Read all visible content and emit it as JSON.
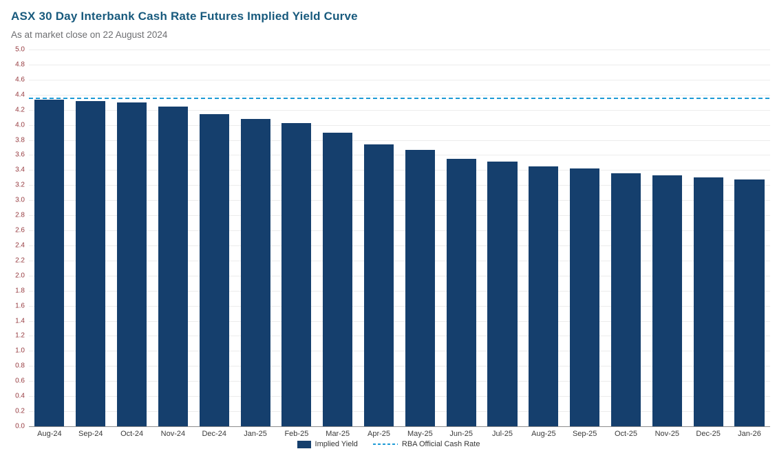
{
  "header": {
    "title": "ASX 30 Day Interbank Cash Rate Futures Implied Yield Curve",
    "subtitle": "As at market close on 22 August 2024"
  },
  "legend": {
    "implied_yield_label": "Implied Yield",
    "rba_rate_label": "RBA Official Cash Rate"
  },
  "colors": {
    "bar": "#153f6d",
    "rba_line": "#1c9ad6",
    "title": "#185a7d",
    "subtitle": "#6d6e71",
    "y_tick": "#963a3f",
    "x_tick": "#3a3a3a",
    "gridline": "#ececec",
    "baseline": "#8c8c8c"
  },
  "chart_data": {
    "type": "bar",
    "title": "ASX 30 Day Interbank Cash Rate Futures Implied Yield Curve",
    "subtitle": "As at market close on 22 August 2024",
    "categories": [
      "Aug-24",
      "Sep-24",
      "Oct-24",
      "Nov-24",
      "Dec-24",
      "Jan-25",
      "Feb-25",
      "Mar-25",
      "Apr-25",
      "May-25",
      "Jun-25",
      "Jul-25",
      "Aug-25",
      "Sep-25",
      "Oct-25",
      "Nov-25",
      "Dec-25",
      "Jan-26"
    ],
    "series": [
      {
        "name": "Implied Yield",
        "type": "bar",
        "values": [
          4.33,
          4.32,
          4.3,
          4.24,
          4.14,
          4.08,
          4.02,
          3.9,
          3.74,
          3.67,
          3.55,
          3.51,
          3.45,
          3.42,
          3.36,
          3.33,
          3.3,
          3.28
        ]
      },
      {
        "name": "RBA Official Cash Rate",
        "type": "line",
        "value": 4.35
      }
    ],
    "xlabel": "",
    "ylabel": "",
    "ylim": [
      0.0,
      5.0
    ],
    "y_tick_step": 0.2,
    "grid": true,
    "legend_position": "bottom"
  }
}
